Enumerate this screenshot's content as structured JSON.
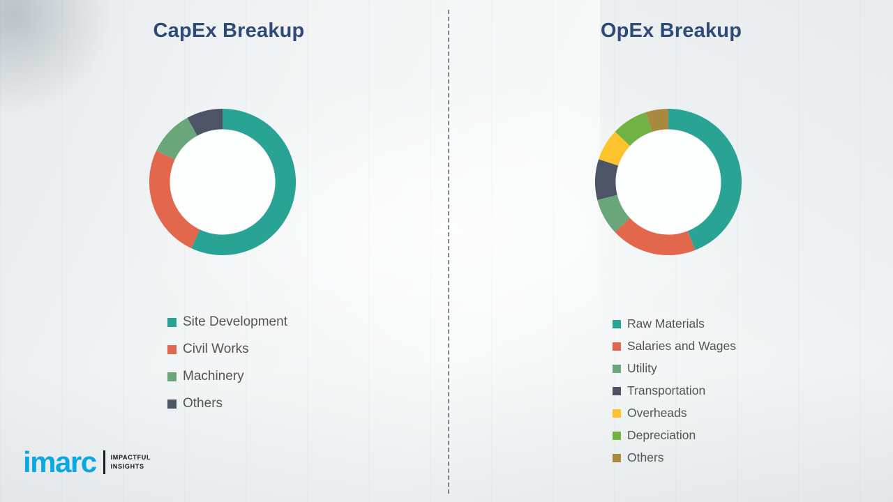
{
  "chart_data": [
    {
      "type": "pie",
      "subtype": "donut",
      "title": "CapEx Breakup",
      "labels": [
        "Site Development",
        "Civil Works",
        "Machinery",
        "Others"
      ],
      "values": [
        57,
        25,
        10,
        8
      ],
      "colors": [
        "#29a393",
        "#e2674d",
        "#69a679",
        "#4c5466"
      ],
      "units": "%",
      "value_basis": "estimated_from_arc_angles",
      "start_angle_deg": 0,
      "direction": "clockwise",
      "legend_position": "below-left"
    },
    {
      "type": "pie",
      "subtype": "donut",
      "title": "OpEx Breakup",
      "labels": [
        "Raw Materials",
        "Salaries and Wages",
        "Utility",
        "Transportation",
        "Overheads",
        "Depreciation",
        "Others"
      ],
      "values": [
        44,
        19,
        8,
        9,
        7,
        8,
        5
      ],
      "colors": [
        "#29a393",
        "#e2674d",
        "#69a679",
        "#4c5466",
        "#fcc32d",
        "#70b244",
        "#a9893d"
      ],
      "units": "%",
      "value_basis": "estimated_from_arc_angles",
      "start_angle_deg": 0,
      "direction": "clockwise",
      "legend_position": "below-left"
    }
  ],
  "divider_style": "vertical-dashed",
  "logo": {
    "brand": "imarc",
    "tagline_line1": "IMPACTFUL",
    "tagline_line2": "INSIGHTS",
    "brand_color": "#09a8e2"
  },
  "theme": {
    "title_color": "#2d4a78",
    "legend_text_color": "#545454",
    "background_color": "#f2f4f5"
  }
}
